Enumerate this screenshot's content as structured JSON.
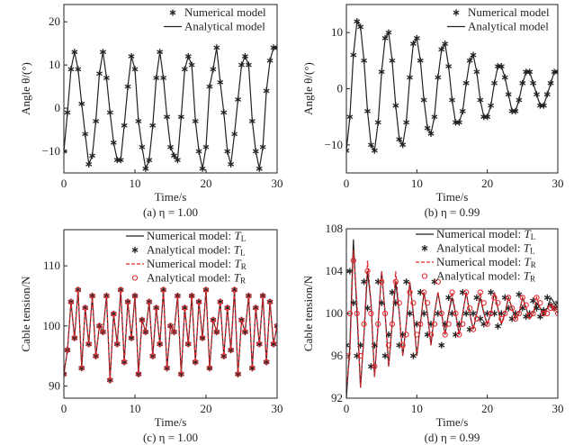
{
  "chart_data": [
    {
      "type": "line",
      "caption": "(a) η = 1.00",
      "xlabel": "Time/s",
      "ylabel": "Angle θ/(°)",
      "xlim": [
        0,
        30
      ],
      "ylim": [
        -15,
        24
      ],
      "xticks": [
        0,
        10,
        20,
        30
      ],
      "yticks": [
        -10,
        0,
        10,
        20
      ],
      "legend_position": "top-right",
      "x": [
        0,
        0.5,
        1,
        1.5,
        2,
        2.5,
        3,
        3.5,
        4,
        4.5,
        5,
        5.5,
        6,
        6.5,
        7,
        7.5,
        8,
        8.5,
        9,
        9.5,
        10,
        10.5,
        11,
        11.5,
        12,
        12.5,
        13,
        13.5,
        14,
        14.5,
        15,
        15.5,
        16,
        16.5,
        17,
        17.5,
        18,
        18.5,
        19,
        19.5,
        20,
        20.5,
        21,
        21.5,
        22,
        22.5,
        23,
        23.5,
        24,
        24.5,
        25,
        25.5,
        26,
        26.5,
        27,
        27.5,
        28,
        28.5,
        29,
        29.5,
        30
      ],
      "series": [
        {
          "name": "Numerical model",
          "style": "star",
          "color": "#222222",
          "values": [
            -10,
            -1,
            9,
            13,
            9,
            1,
            -6,
            -13,
            -11,
            -3,
            8,
            13,
            7,
            -1,
            -8,
            -12,
            -12,
            -4,
            5,
            12,
            9,
            -3,
            -9,
            -14,
            -12,
            -4,
            7,
            13,
            7,
            -2,
            -9,
            -11,
            -12,
            -2,
            9,
            12,
            10,
            -3,
            -10,
            -14,
            -9,
            5,
            9,
            14,
            6,
            -1,
            -10,
            -13,
            -6,
            2,
            10,
            12,
            10,
            -3,
            -10,
            -14,
            -9,
            4,
            11,
            14,
            14
          ]
        },
        {
          "name": "Analytical model",
          "style": "solid",
          "color": "#222222",
          "values": [
            -10,
            -1,
            9,
            13,
            9,
            1,
            -6,
            -13,
            -11,
            -3,
            8,
            13,
            7,
            -1,
            -8,
            -12,
            -12,
            -4,
            5,
            12,
            9,
            -3,
            -9,
            -14,
            -12,
            -4,
            7,
            13,
            7,
            -2,
            -9,
            -11,
            -12,
            -2,
            9,
            12,
            10,
            -3,
            -10,
            -14,
            -9,
            5,
            9,
            14,
            6,
            -1,
            -10,
            -13,
            -6,
            2,
            10,
            12,
            10,
            -3,
            -10,
            -14,
            -9,
            4,
            11,
            14,
            14
          ]
        }
      ]
    },
    {
      "type": "line",
      "caption": "(b) η = 0.99",
      "xlabel": "Time/s",
      "ylabel": "Angle θ/(°)",
      "xlim": [
        0,
        30
      ],
      "ylim": [
        -15,
        15
      ],
      "xticks": [
        0,
        10,
        20,
        30
      ],
      "yticks": [
        -10,
        0,
        10
      ],
      "legend_position": "top-right",
      "x": [
        0,
        0.5,
        1,
        1.5,
        2,
        2.5,
        3,
        3.5,
        4,
        4.5,
        5,
        5.5,
        6,
        6.5,
        7,
        7.5,
        8,
        8.5,
        9,
        9.5,
        10,
        10.5,
        11,
        11.5,
        12,
        12.5,
        13,
        13.5,
        14,
        14.5,
        15,
        15.5,
        16,
        16.5,
        17,
        17.5,
        18,
        18.5,
        19,
        19.5,
        20,
        20.5,
        21,
        21.5,
        22,
        22.5,
        23,
        23.5,
        24,
        24.5,
        25,
        25.5,
        26,
        26.5,
        27,
        27.5,
        28,
        28.5,
        29,
        29.5,
        30
      ],
      "series": [
        {
          "name": "Numerical model",
          "style": "star",
          "color": "#222222",
          "values": [
            -11,
            -5,
            6,
            12,
            11,
            5,
            -4,
            -10,
            -11,
            -6,
            3,
            9,
            10,
            5,
            -3,
            -9,
            -10,
            -6,
            2,
            8,
            9,
            5,
            -2,
            -7,
            -8,
            -5,
            2,
            7,
            8,
            4,
            -2,
            -6,
            -6,
            -4,
            1,
            5,
            6,
            3,
            -2,
            -5,
            -5,
            -3,
            1,
            4,
            4,
            2,
            -1,
            -4,
            -4,
            -2,
            1,
            3,
            3,
            1,
            -1,
            -3,
            -3,
            -1,
            1,
            3,
            3
          ]
        },
        {
          "name": "Analytical model",
          "style": "solid",
          "color": "#222222",
          "values": [
            -11,
            -5,
            6,
            12,
            11,
            5,
            -4,
            -10,
            -11,
            -6,
            3,
            9,
            10,
            5,
            -3,
            -9,
            -10,
            -6,
            2,
            8,
            9,
            5,
            -2,
            -7,
            -8,
            -5,
            2,
            7,
            8,
            4,
            -2,
            -6,
            -6,
            -4,
            1,
            5,
            6,
            3,
            -2,
            -5,
            -5,
            -3,
            1,
            4,
            4,
            2,
            -1,
            -4,
            -4,
            -2,
            1,
            3,
            3,
            1,
            -1,
            -3,
            -3,
            -1,
            1,
            3,
            3
          ]
        }
      ]
    },
    {
      "type": "line",
      "caption": "(c) η = 1.00",
      "xlabel": "Time/s",
      "ylabel": "Cable tension/N",
      "xlim": [
        0,
        30
      ],
      "ylim": [
        88,
        116
      ],
      "xticks": [
        0,
        10,
        20,
        30
      ],
      "yticks": [
        90,
        100,
        110
      ],
      "legend_position": "top-right",
      "x": [
        0,
        0.5,
        1,
        1.5,
        2,
        2.5,
        3,
        3.5,
        4,
        4.5,
        5,
        5.5,
        6,
        6.5,
        7,
        7.5,
        8,
        8.5,
        9,
        9.5,
        10,
        10.5,
        11,
        11.5,
        12,
        12.5,
        13,
        13.5,
        14,
        14.5,
        15,
        15.5,
        16,
        16.5,
        17,
        17.5,
        18,
        18.5,
        19,
        19.5,
        20,
        20.5,
        21,
        21.5,
        22,
        22.5,
        23,
        23.5,
        24,
        24.5,
        25,
        25.5,
        26,
        26.5,
        27,
        27.5,
        28,
        28.5,
        29,
        29.5,
        30
      ],
      "series": [
        {
          "name": {
            "text": "Numerical model: ",
            "var": "T",
            "sub": "L"
          },
          "style": "solid",
          "color": "#222222",
          "values": [
            92,
            96,
            104,
            98,
            106,
            93,
            103,
            97,
            105,
            95,
            100,
            99,
            105,
            91,
            102,
            97,
            106,
            94,
            104,
            98,
            105,
            92,
            101,
            99,
            104,
            95,
            103,
            97,
            106,
            93,
            100,
            99,
            105,
            92,
            103,
            97,
            105,
            94,
            104,
            98,
            106,
            93,
            101,
            99,
            104,
            95,
            103,
            96,
            106,
            92,
            101,
            99,
            105,
            93,
            103,
            97,
            105,
            94,
            104,
            97,
            100
          ]
        },
        {
          "name": {
            "text": "Analytical model: ",
            "var": "T",
            "sub": "L"
          },
          "style": "star",
          "color": "#222222",
          "values": [
            92,
            96,
            104,
            98,
            106,
            93,
            103,
            97,
            105,
            95,
            100,
            99,
            105,
            91,
            102,
            97,
            106,
            94,
            104,
            98,
            105,
            92,
            101,
            99,
            104,
            95,
            103,
            97,
            106,
            93,
            100,
            99,
            105,
            92,
            103,
            97,
            105,
            94,
            104,
            98,
            106,
            93,
            101,
            99,
            104,
            95,
            103,
            96,
            106,
            92,
            101,
            99,
            105,
            93,
            103,
            97,
            105,
            94,
            104,
            97,
            100
          ]
        },
        {
          "name": {
            "text": "Numerical model: ",
            "var": "T",
            "sub": "R"
          },
          "style": "dashed",
          "color": "#e0242a",
          "values": [
            92,
            96,
            104,
            98,
            106,
            93,
            103,
            97,
            105,
            95,
            100,
            99,
            105,
            91,
            102,
            97,
            106,
            94,
            104,
            98,
            105,
            92,
            101,
            99,
            104,
            95,
            103,
            97,
            106,
            93,
            100,
            99,
            105,
            92,
            103,
            97,
            105,
            94,
            104,
            98,
            106,
            93,
            101,
            99,
            104,
            95,
            103,
            96,
            106,
            92,
            101,
            99,
            105,
            93,
            103,
            97,
            105,
            94,
            104,
            97,
            100
          ]
        },
        {
          "name": {
            "text": "Analytical model: ",
            "var": "T",
            "sub": "R"
          },
          "style": "circle",
          "color": "#e0242a",
          "values": [
            92,
            96,
            104,
            98,
            106,
            93,
            103,
            97,
            105,
            95,
            100,
            99,
            105,
            91,
            102,
            97,
            106,
            94,
            104,
            98,
            105,
            92,
            101,
            99,
            104,
            95,
            103,
            97,
            106,
            93,
            100,
            99,
            105,
            92,
            103,
            97,
            105,
            94,
            104,
            98,
            106,
            93,
            101,
            99,
            104,
            95,
            103,
            96,
            106,
            92,
            101,
            99,
            105,
            93,
            103,
            97,
            105,
            94,
            104,
            97,
            100
          ]
        }
      ]
    },
    {
      "type": "line",
      "caption": "(d) η = 0.99",
      "xlabel": "Time/s",
      "ylabel": "Cable tension/N",
      "xlim": [
        0,
        30
      ],
      "ylim": [
        92,
        108
      ],
      "xticks": [
        0,
        10,
        20,
        30
      ],
      "yticks": [
        92,
        96,
        100,
        104,
        108
      ],
      "legend_position": "top-right",
      "x": [
        0,
        0.5,
        1,
        1.5,
        2,
        2.5,
        3,
        3.5,
        4,
        4.5,
        5,
        5.5,
        6,
        6.5,
        7,
        7.5,
        8,
        8.5,
        9,
        9.5,
        10,
        10.5,
        11,
        11.5,
        12,
        12.5,
        13,
        13.5,
        14,
        14.5,
        15,
        15.5,
        16,
        16.5,
        17,
        17.5,
        18,
        18.5,
        19,
        19.5,
        20,
        20.5,
        21,
        21.5,
        22,
        22.5,
        23,
        23.5,
        24,
        24.5,
        25,
        25.5,
        26,
        26.5,
        27,
        27.5,
        28,
        28.5,
        29,
        29.5,
        30
      ],
      "series": [
        {
          "name": {
            "text": "Numerical model: ",
            "var": "T",
            "sub": "L"
          },
          "style": "solid",
          "color": "#222222",
          "values": [
            92,
            97,
            107,
            100,
            93,
            98,
            104,
            101,
            94,
            99,
            104,
            100,
            95,
            99,
            103,
            100,
            96,
            99,
            103,
            100,
            96,
            99,
            102,
            100,
            97,
            100,
            102,
            100,
            98,
            100,
            101.5,
            100,
            98,
            100,
            102,
            100,
            98.5,
            100,
            101.5,
            100,
            99,
            100,
            102,
            100.5,
            99,
            100,
            101.5,
            100.5,
            99.5,
            100,
            101.5,
            100.5,
            99.5,
            100,
            101,
            100.5,
            99.8,
            100.5,
            101.5,
            101,
            100.5
          ]
        },
        {
          "name": {
            "text": "Analytical model: ",
            "var": "T",
            "sub": "L"
          },
          "style": "star",
          "color": "#222222",
          "values": [
            97,
            104,
            101,
            96,
            97,
            103,
            100.5,
            95,
            97,
            103,
            101,
            96,
            98,
            102,
            101,
            97,
            98,
            103,
            100,
            96,
            99,
            102,
            100,
            98,
            99,
            103,
            100,
            97,
            99,
            101.5,
            100,
            98,
            99,
            102,
            100,
            98.5,
            100,
            101.5,
            99.5,
            99,
            100,
            102,
            100,
            98.8,
            100,
            101.5,
            100.5,
            99.5,
            100,
            101.8,
            100.5,
            99.7,
            100,
            101.2,
            100.5,
            99.7,
            100.3,
            101.5,
            100.8,
            100.5,
            101
          ]
        },
        {
          "name": {
            "text": "Numerical model: ",
            "var": "T",
            "sub": "R"
          },
          "style": "dashed",
          "color": "#e0242a",
          "values": [
            93,
            96,
            106,
            101,
            93,
            98,
            105,
            101,
            94,
            99,
            104,
            100,
            95,
            99,
            104,
            100,
            96,
            99,
            103,
            100,
            96,
            99,
            102,
            100,
            97,
            100,
            102,
            100,
            98,
            100,
            102,
            100,
            98,
            100,
            102,
            100,
            98.5,
            100,
            102,
            100,
            99,
            100,
            102,
            100.5,
            99,
            100,
            101.5,
            100.5,
            99.5,
            100,
            101.5,
            100.5,
            99.5,
            100,
            101.5,
            100.5,
            100,
            100.5,
            101,
            100.5,
            100
          ]
        },
        {
          "name": {
            "text": "Analytical model: ",
            "var": "T",
            "sub": "R"
          },
          "style": "circle",
          "color": "#e0242a",
          "values": [
            96,
            100,
            105,
            100,
            96,
            99,
            104,
            100,
            95,
            99,
            103,
            100,
            97,
            99,
            103,
            101,
            97,
            98,
            102,
            101,
            98,
            99,
            102,
            101,
            98,
            99,
            103,
            100,
            98,
            99,
            102,
            100,
            98,
            99,
            102,
            100.5,
            98.5,
            99.5,
            102,
            101,
            99,
            100,
            101.5,
            101,
            99.5,
            100,
            101.5,
            100.5,
            99.5,
            100,
            101.5,
            100.8,
            99.8,
            100,
            101.5,
            101,
            100,
            100,
            100.5,
            100.5,
            100
          ]
        }
      ]
    }
  ]
}
